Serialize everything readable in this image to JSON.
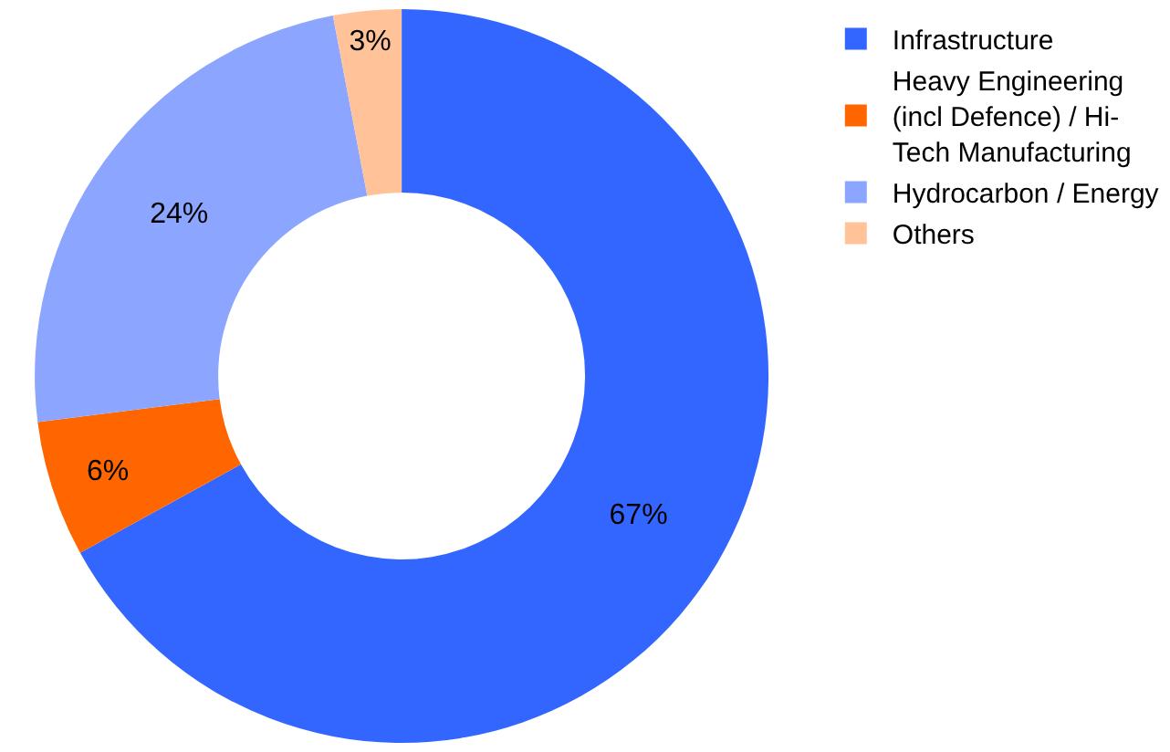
{
  "chart_data": {
    "type": "donut",
    "categories": [
      "Infrastructure",
      "Heavy Engineering (incl Defence) / Hi-Tech Manufacturing",
      "Hydrocarbon / Energy",
      "Others"
    ],
    "values": [
      67,
      6,
      24,
      3
    ],
    "colors": [
      "#3366ff",
      "#ff6600",
      "#8ca6ff",
      "#ffc299"
    ],
    "value_labels": [
      "67%",
      "6%",
      "24%",
      "3%"
    ],
    "legend": "right"
  }
}
